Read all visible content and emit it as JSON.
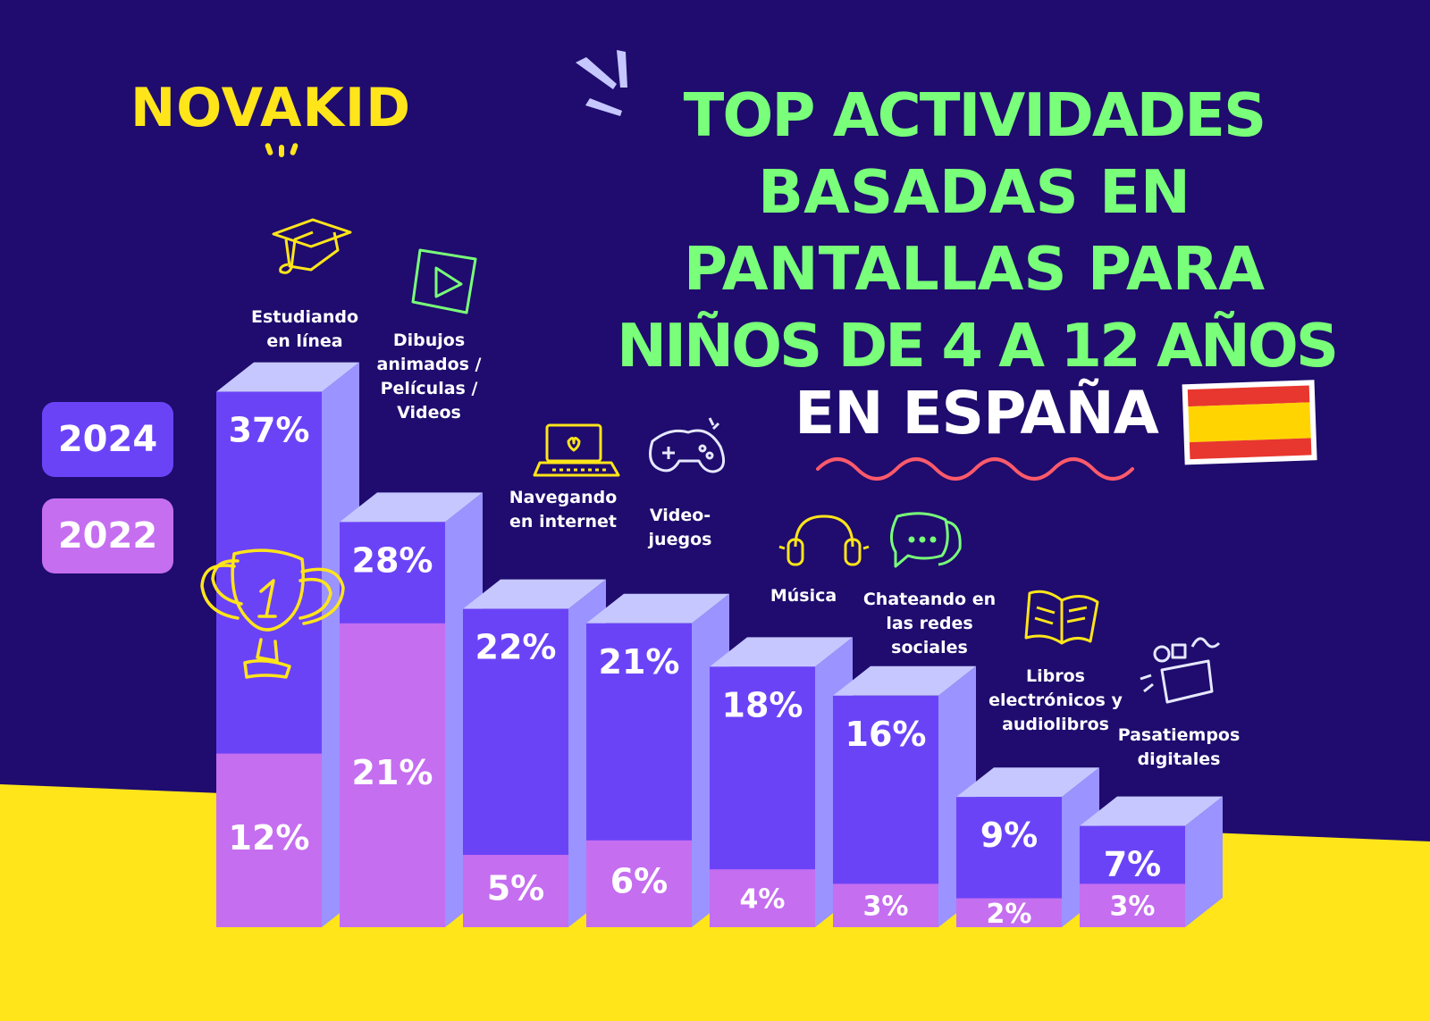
{
  "brand": {
    "logo_text": "NOVAKID"
  },
  "title_lines": [
    "TOP ACTIVIDADES",
    "BASADAS EN",
    "PANTALLAS PARA",
    "NIÑOS DE 4 A 12 AÑOS"
  ],
  "country": "EN ESPAÑA",
  "legend": [
    {
      "label": "2024",
      "color": "#6b43f7"
    },
    {
      "label": "2022",
      "color": "#c56ef0"
    }
  ],
  "colors": {
    "background": "#1f0c6e",
    "floor": "#ffe51a",
    "title": "#79ff79",
    "bar_2024": "#6b43f7",
    "bar_2022": "#c56ef0",
    "bar_side": "#9b93ff",
    "bar_top": "#c6c7ff",
    "icon_yellow": "#ffe51a",
    "icon_green": "#79ff79",
    "icon_white": "#e6e8ff",
    "squiggle": "#ff5a6b",
    "flag_red": "#e8372e",
    "flag_yellow": "#ffd400"
  },
  "icons": [
    "graduation-cap-icon",
    "play-icon",
    "laptop-icon",
    "gamepad-icon",
    "headphones-icon",
    "chat-icon",
    "book-icon",
    "toy-box-icon",
    "trophy-icon",
    "spain-flag-icon"
  ],
  "chart_data": {
    "type": "bar",
    "categories": [
      "Estudiando\nen línea",
      "Dibujos\nanimados /\nPelículas /\nVideos",
      "Navegando\nen internet",
      "Video-\njuegos",
      "Música",
      "Chateando en\nlas redes\nsociales",
      "Libros\nelectrónicos y\naudiolibros",
      "Pasatiempos\ndigitales"
    ],
    "series": [
      {
        "name": "2024",
        "values": [
          37,
          28,
          22,
          21,
          18,
          16,
          9,
          7
        ]
      },
      {
        "name": "2022",
        "values": [
          12,
          21,
          5,
          6,
          4,
          3,
          2,
          3
        ]
      }
    ],
    "value_labels_2024": [
      "37%",
      "28%",
      "22%",
      "21%",
      "18%",
      "16%",
      "9%",
      "7%"
    ],
    "value_labels_2022": [
      "12%",
      "21%",
      "5%",
      "6%",
      "4%",
      "3%",
      "2%",
      "3%"
    ],
    "ylim": [
      0,
      40
    ],
    "legend_position": "left"
  }
}
